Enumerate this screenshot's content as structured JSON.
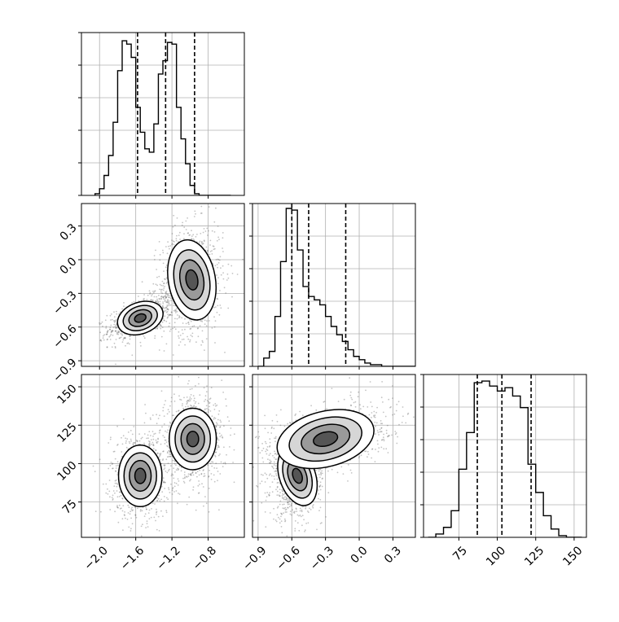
{
  "chart_data": {
    "type": "corner",
    "grid": true,
    "parameters": [
      {
        "range": [
          -2.2,
          -0.4
        ],
        "ticks": [
          "−2.0",
          "−1.6",
          "−1.2",
          "−0.8"
        ],
        "tick_values": [
          -2.0,
          -1.6,
          -1.2,
          -0.8
        ]
      },
      {
        "range": [
          -0.95,
          0.5
        ],
        "ticks": [
          "−0.9",
          "−0.6",
          "−0.3",
          "0.0",
          "0.3"
        ],
        "tick_values": [
          -0.9,
          -0.6,
          -0.3,
          0.0,
          0.3
        ]
      },
      {
        "range": [
          52,
          158
        ],
        "ticks": [
          "75",
          "100",
          "125",
          "150"
        ],
        "tick_values": [
          75,
          100,
          125,
          150
        ]
      }
    ],
    "histograms": [
      {
        "parameter": 0,
        "bin_edges": [
          -2.05,
          -2.0,
          -1.95,
          -1.9,
          -1.85,
          -1.8,
          -1.75,
          -1.7,
          -1.65,
          -1.6,
          -1.55,
          -1.5,
          -1.45,
          -1.4,
          -1.35,
          -1.3,
          -1.25,
          -1.2,
          -1.15,
          -1.1,
          -1.05,
          -1.0,
          -0.95,
          -0.9,
          -0.85,
          -0.8,
          -0.75,
          -0.7,
          -0.65,
          -0.6,
          -0.55
        ],
        "counts": [
          0.01,
          0.04,
          0.12,
          0.24,
          0.44,
          0.75,
          0.93,
          0.91,
          0.83,
          0.53,
          0.38,
          0.28,
          0.26,
          0.43,
          0.73,
          0.81,
          0.92,
          0.91,
          0.53,
          0.34,
          0.19,
          0.06,
          0.01,
          0.0,
          0.0,
          0.0,
          0.0,
          0.0,
          0.0,
          0.0
        ],
        "quantiles": [
          -1.58,
          -1.27,
          -0.95
        ]
      },
      {
        "parameter": 1,
        "bin_edges": [
          -0.9,
          -0.85,
          -0.8,
          -0.75,
          -0.7,
          -0.65,
          -0.6,
          -0.55,
          -0.5,
          -0.45,
          -0.4,
          -0.35,
          -0.3,
          -0.25,
          -0.2,
          -0.15,
          -0.1,
          -0.05,
          0.0,
          0.05,
          0.1,
          0.15,
          0.2,
          0.25,
          0.3,
          0.35,
          0.4,
          0.45,
          0.5
        ],
        "counts": [
          0.0,
          0.05,
          0.09,
          0.3,
          0.63,
          0.95,
          0.94,
          0.7,
          0.48,
          0.42,
          0.4,
          0.37,
          0.3,
          0.24,
          0.19,
          0.15,
          0.1,
          0.06,
          0.04,
          0.02,
          0.01,
          0.01,
          0.0,
          0.0,
          0.0,
          0.0,
          0.0,
          0.0
        ],
        "quantiles": [
          -0.6,
          -0.45,
          -0.12
        ]
      },
      {
        "parameter": 2,
        "bin_edges": [
          55,
          60,
          65,
          70,
          75,
          80,
          85,
          90,
          95,
          100,
          105,
          110,
          115,
          120,
          125,
          130,
          135,
          140,
          145,
          150,
          155
        ],
        "counts": [
          0.0,
          0.02,
          0.06,
          0.16,
          0.41,
          0.63,
          0.93,
          0.94,
          0.91,
          0.88,
          0.9,
          0.85,
          0.78,
          0.44,
          0.27,
          0.13,
          0.05,
          0.01,
          0.0,
          0.0
        ],
        "quantiles": [
          87,
          103,
          122
        ]
      }
    ],
    "scatter_panels": [
      {
        "x_parameter": 0,
        "y_parameter": 1,
        "modes": [
          {
            "center": [
              -1.55,
              -0.52
            ],
            "sd": [
              0.13,
              0.07
            ],
            "correlation": 0.55,
            "contour_radii": [
              0.5,
              1.0,
              1.5,
              2.0
            ]
          },
          {
            "center": [
              -0.98,
              -0.18
            ],
            "sd": [
              0.13,
              0.18
            ],
            "correlation": 0.1,
            "contour_radii": [
              0.5,
              1.0,
              1.5,
              2.0
            ]
          }
        ]
      },
      {
        "x_parameter": 0,
        "y_parameter": 2,
        "modes": [
          {
            "center": [
              -1.55,
              92
            ],
            "sd": [
              0.12,
              10
            ],
            "correlation": 0.0,
            "contour_radii": [
              0.5,
              1.0,
              1.5,
              2.0
            ]
          },
          {
            "center": [
              -0.97,
              116
            ],
            "sd": [
              0.13,
              10
            ],
            "correlation": 0.0,
            "contour_radii": [
              0.5,
              1.0,
              1.5,
              2.0
            ]
          }
        ]
      },
      {
        "x_parameter": 1,
        "y_parameter": 2,
        "modes": [
          {
            "center": [
              -0.55,
              92
            ],
            "sd": [
              0.08,
              10
            ],
            "correlation": 0.2,
            "contour_radii": [
              0.5,
              1.0,
              1.5,
              2.0
            ]
          },
          {
            "center": [
              -0.3,
              116
            ],
            "sd": [
              0.22,
              9
            ],
            "correlation": 0.45,
            "contour_radii": [
              0.5,
              1.0,
              1.5,
              2.0
            ]
          }
        ]
      }
    ]
  }
}
